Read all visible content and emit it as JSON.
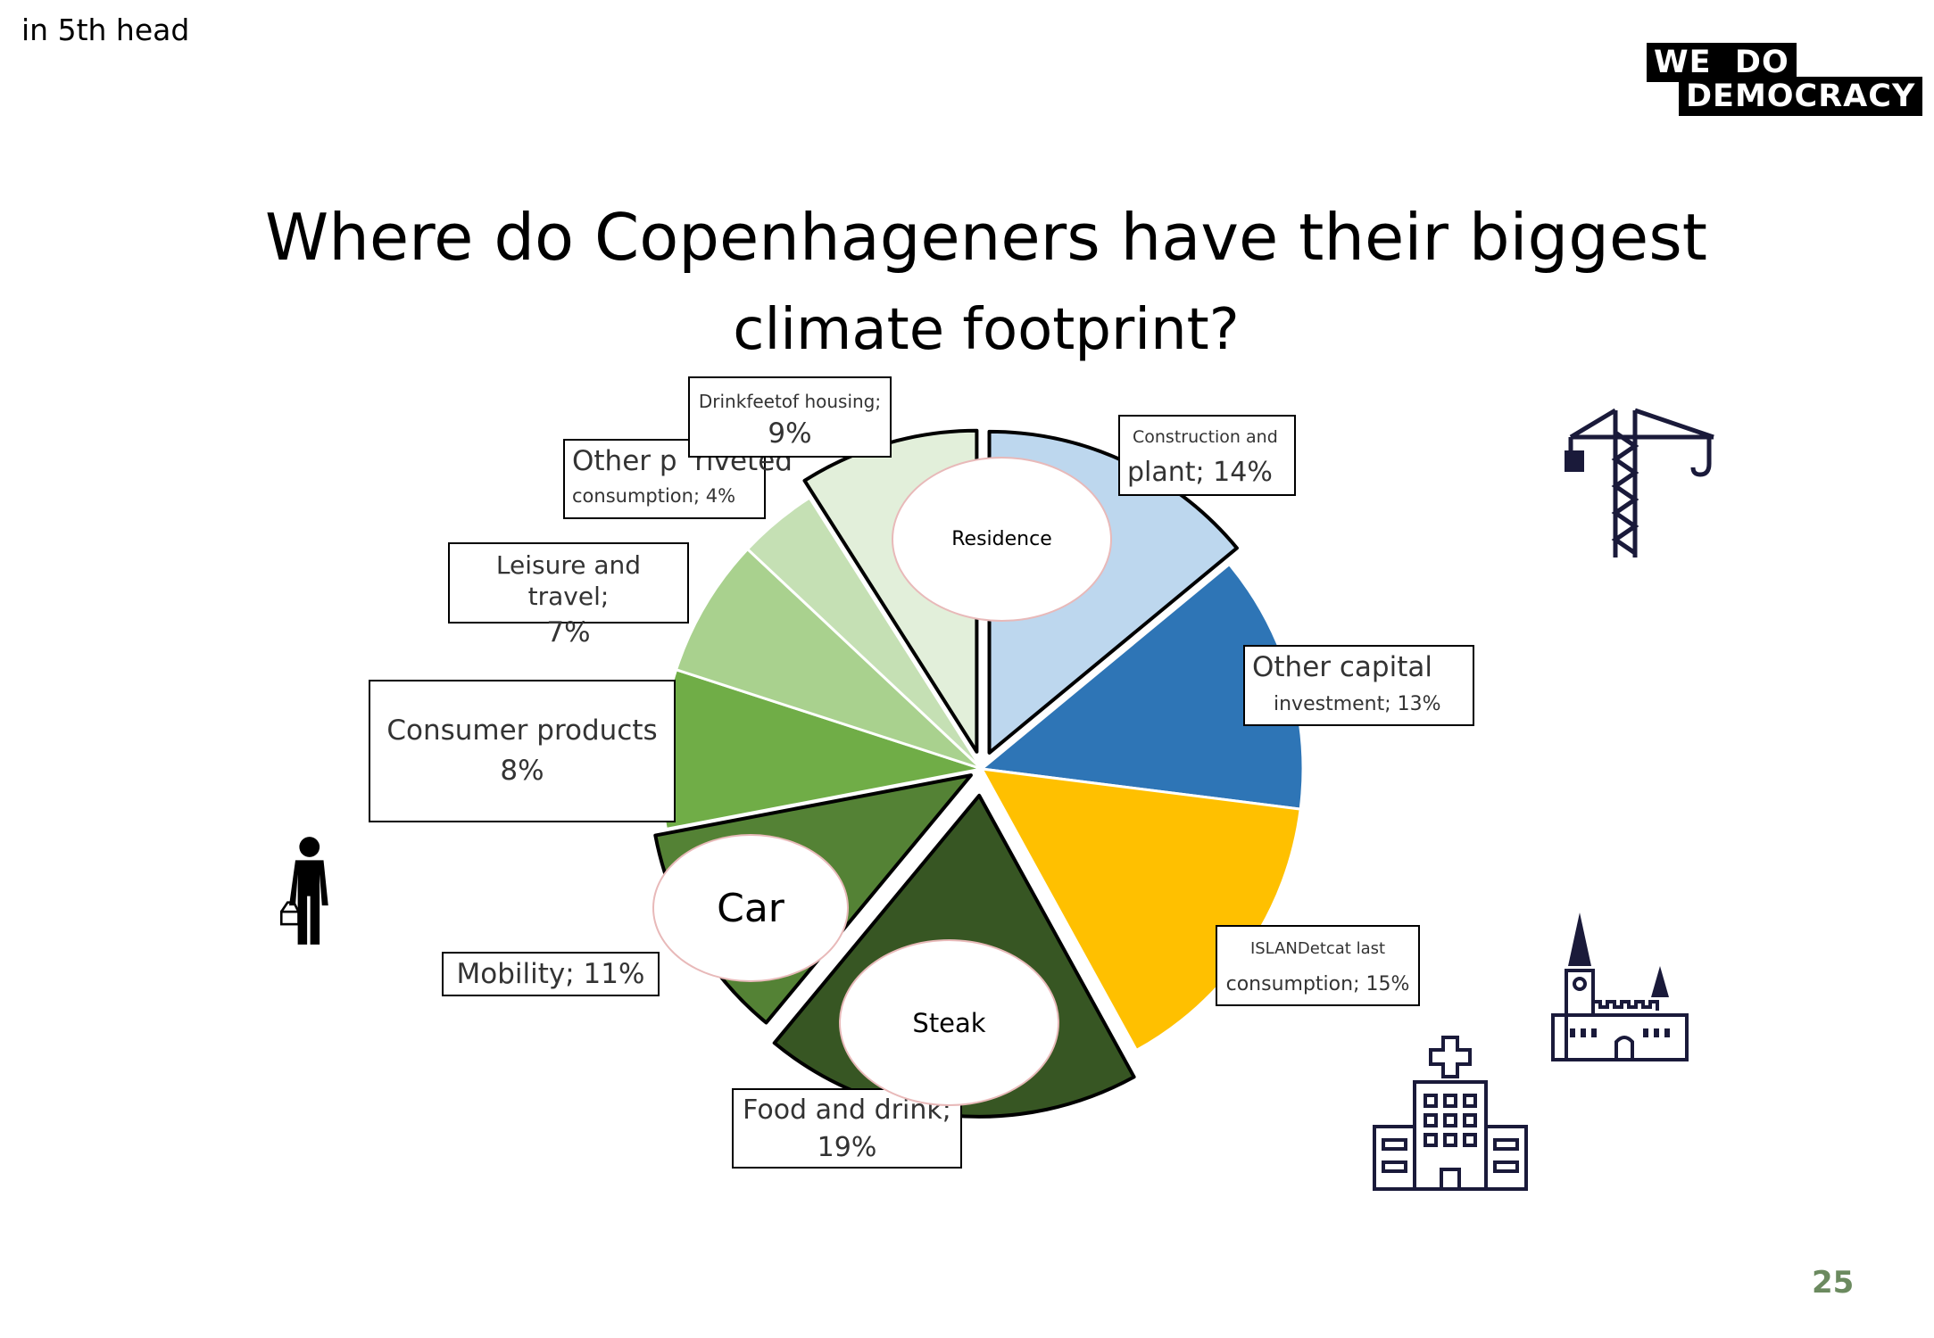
{
  "header_note": "in 5th head",
  "logo": {
    "line1": "WE  DO",
    "line2": "DEMOCRACY"
  },
  "title_line1": "Where do Copenhageners have their biggest",
  "title_line2": "climate footprint?",
  "page_number": "25",
  "chart_data": {
    "type": "pie",
    "title": "Where do Copenhageners have their biggest climate footprint?",
    "unit": "%",
    "slices": [
      {
        "name": "Construction and plant",
        "value": 14,
        "color": "#bdd7ee",
        "label_top": "Construction and",
        "label_bottom": "plant; 14%"
      },
      {
        "name": "Other capital investment",
        "value": 13,
        "color": "#2e75b6",
        "label_top": "Other capital",
        "label_bottom": "investment; 13%"
      },
      {
        "name": "ISLANDetcat last consumption",
        "value": 15,
        "color": "#ffc000",
        "label_top": "ISLANDetcat last",
        "label_bottom": "consumption; 15%"
      },
      {
        "name": "Food and drink",
        "value": 19,
        "color": "#375623",
        "label_top": "Food and drink;",
        "label_bottom": "19%"
      },
      {
        "name": "Mobility",
        "value": 11,
        "color": "#548235",
        "label_top": "Mobility; 11%",
        "label_bottom": ""
      },
      {
        "name": "Consumer products",
        "value": 8,
        "color": "#70ad47",
        "label_top": "Consumer products",
        "label_bottom": "8%"
      },
      {
        "name": "Leisure and travel",
        "value": 7,
        "color": "#a9d18e",
        "label_top": "Leisure and travel;",
        "label_bottom": "7%"
      },
      {
        "name": "Other p riveted consumption",
        "value": 4,
        "color": "#c5e0b4",
        "label_top": "Other p  riveted",
        "label_bottom": "consumption; 4%"
      },
      {
        "name": "Drinkfeetof housing",
        "value": 9,
        "color": "#e2efda",
        "label_top": "Drinkfeetof housing;",
        "label_bottom": "9%"
      }
    ],
    "annotations": [
      "Residence",
      "Car",
      "Steak"
    ]
  },
  "icons": [
    "crane-icon",
    "shopper-icon",
    "church-icon",
    "hospital-icon"
  ]
}
